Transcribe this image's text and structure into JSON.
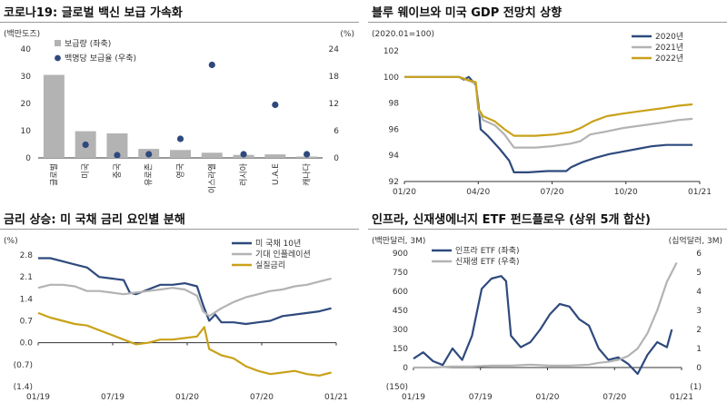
{
  "chart_data": [
    {
      "type": "bar",
      "title": "코로나19: 글로벌 백신 보급 가속화",
      "ylabel_left": "(백만도즈)",
      "ylabel_right": "(%)",
      "ylim": [
        0,
        40
      ],
      "ylim_right": [
        0,
        24
      ],
      "yticks": [
        "0",
        "10",
        "20",
        "30",
        "40"
      ],
      "yticks_right": [
        "0",
        "6",
        "12",
        "18",
        "24"
      ],
      "categories": [
        "글로벌",
        "미국",
        "중국",
        "유로존",
        "영국",
        "이스라엘",
        "러시아",
        "U.A.E",
        "캐나다"
      ],
      "series": [
        {
          "name": "보급량 (좌축)",
          "values": [
            30.5,
            9.8,
            9.0,
            3.3,
            2.9,
            1.9,
            1.1,
            1.3,
            0.5
          ],
          "axis": "left"
        },
        {
          "name": "백명당 보급율 (우축)",
          "values": [
            null,
            2.9,
            0.6,
            0.8,
            4.2,
            20.5,
            0.8,
            11.7,
            0.8
          ],
          "axis": "right"
        }
      ],
      "colors": {
        "bar": "#b3b3b3",
        "dot": "#2e4a7d"
      }
    },
    {
      "type": "line",
      "title": "블루 웨이브와 미국 GDP 전망치 상향",
      "ylabel": "(2020.01=100)",
      "ylim": [
        92,
        102
      ],
      "yticks": [
        "92",
        "94",
        "96",
        "98",
        "100",
        "102"
      ],
      "xticks": [
        "01/20",
        "04/20",
        "07/20",
        "10/20",
        "01/21"
      ],
      "series": [
        {
          "name": "2020년",
          "color": "#2e4a7d",
          "points": [
            [
              0,
              100
            ],
            [
              2.3,
              100
            ],
            [
              2.5,
              99.8
            ],
            [
              2.7,
              100
            ],
            [
              2.9,
              99.6
            ],
            [
              3,
              99.4
            ],
            [
              3.1,
              98
            ],
            [
              3.2,
              96
            ],
            [
              3.5,
              95.5
            ],
            [
              4,
              94.5
            ],
            [
              4.4,
              93.6
            ],
            [
              4.6,
              92.7
            ],
            [
              5.2,
              92.7
            ],
            [
              6,
              92.8
            ],
            [
              6.8,
              92.8
            ],
            [
              7,
              93.1
            ],
            [
              7.5,
              93.5
            ],
            [
              8,
              93.8
            ],
            [
              8.6,
              94.1
            ],
            [
              9.2,
              94.3
            ],
            [
              9.8,
              94.5
            ],
            [
              10.4,
              94.7
            ],
            [
              11,
              94.8
            ],
            [
              11.5,
              94.8
            ],
            [
              12.1,
              94.8
            ]
          ]
        },
        {
          "name": "2021년",
          "color": "#b3b3b3",
          "points": [
            [
              0,
              100
            ],
            [
              2.3,
              100
            ],
            [
              2.6,
              99.8
            ],
            [
              3,
              99.5
            ],
            [
              3.1,
              97.5
            ],
            [
              3.3,
              96.7
            ],
            [
              3.8,
              96.3
            ],
            [
              4.2,
              95.6
            ],
            [
              4.6,
              94.6
            ],
            [
              5.5,
              94.6
            ],
            [
              6.2,
              94.7
            ],
            [
              7,
              94.9
            ],
            [
              7.4,
              95.1
            ],
            [
              7.8,
              95.6
            ],
            [
              8.4,
              95.8
            ],
            [
              9.2,
              96.1
            ],
            [
              10,
              96.3
            ],
            [
              10.8,
              96.5
            ],
            [
              11.5,
              96.7
            ],
            [
              12.1,
              96.8
            ]
          ]
        },
        {
          "name": "2022년",
          "color": "#c9a21a",
          "points": [
            [
              0,
              100
            ],
            [
              2.3,
              100
            ],
            [
              2.6,
              99.8
            ],
            [
              3,
              99.6
            ],
            [
              3.1,
              97.6
            ],
            [
              3.3,
              97
            ],
            [
              3.8,
              96.6
            ],
            [
              4.2,
              96
            ],
            [
              4.6,
              95.5
            ],
            [
              5.5,
              95.5
            ],
            [
              6.3,
              95.6
            ],
            [
              7,
              95.8
            ],
            [
              7.4,
              96.1
            ],
            [
              7.9,
              96.6
            ],
            [
              8.5,
              97
            ],
            [
              9.2,
              97.2
            ],
            [
              10,
              97.4
            ],
            [
              10.8,
              97.6
            ],
            [
              11.5,
              97.8
            ],
            [
              12.1,
              97.9
            ]
          ]
        }
      ]
    },
    {
      "type": "line",
      "title": "금리 상승: 미 국채 금리 요인별 분해",
      "ylabel": "(%)",
      "ylim": [
        -1.4,
        2.8
      ],
      "yticks": [
        "(1.4)",
        "(0.7)",
        "0.0",
        "0.7",
        "1.4",
        "2.1",
        "2.8"
      ],
      "xticks": [
        "01/19",
        "07/19",
        "01/20",
        "07/20",
        "01/21"
      ],
      "series": [
        {
          "name": "미 국채 10년",
          "color": "#2e4a7d",
          "points": [
            [
              0,
              2.7
            ],
            [
              1,
              2.7
            ],
            [
              2,
              2.6
            ],
            [
              3,
              2.5
            ],
            [
              4,
              2.4
            ],
            [
              5,
              2.1
            ],
            [
              6,
              2.05
            ],
            [
              7,
              2.0
            ],
            [
              7.5,
              1.6
            ],
            [
              8,
              1.55
            ],
            [
              9,
              1.7
            ],
            [
              10,
              1.85
            ],
            [
              11,
              1.85
            ],
            [
              12,
              1.9
            ],
            [
              13,
              1.8
            ],
            [
              13.5,
              1.2
            ],
            [
              14,
              0.7
            ],
            [
              14.5,
              0.9
            ],
            [
              15,
              0.65
            ],
            [
              16,
              0.65
            ],
            [
              17,
              0.6
            ],
            [
              18,
              0.65
            ],
            [
              19,
              0.7
            ],
            [
              20,
              0.85
            ],
            [
              21,
              0.9
            ],
            [
              22,
              0.95
            ],
            [
              23,
              1.0
            ],
            [
              24,
              1.1
            ]
          ]
        },
        {
          "name": "기대 인플레이션",
          "color": "#b3b3b3",
          "points": [
            [
              0,
              1.75
            ],
            [
              1,
              1.85
            ],
            [
              2,
              1.85
            ],
            [
              3,
              1.8
            ],
            [
              4,
              1.65
            ],
            [
              5,
              1.65
            ],
            [
              6,
              1.6
            ],
            [
              7,
              1.55
            ],
            [
              8,
              1.6
            ],
            [
              9,
              1.65
            ],
            [
              10,
              1.7
            ],
            [
              11,
              1.75
            ],
            [
              12,
              1.7
            ],
            [
              13,
              1.5
            ],
            [
              13.5,
              1.0
            ],
            [
              14,
              0.85
            ],
            [
              15,
              1.1
            ],
            [
              16,
              1.3
            ],
            [
              17,
              1.45
            ],
            [
              18,
              1.55
            ],
            [
              19,
              1.65
            ],
            [
              20,
              1.7
            ],
            [
              21,
              1.8
            ],
            [
              22,
              1.85
            ],
            [
              23,
              1.95
            ],
            [
              24,
              2.05
            ]
          ]
        },
        {
          "name": "실질금리",
          "color": "#c9a21a",
          "points": [
            [
              0,
              0.95
            ],
            [
              1,
              0.8
            ],
            [
              2,
              0.7
            ],
            [
              3,
              0.6
            ],
            [
              4,
              0.55
            ],
            [
              5,
              0.4
            ],
            [
              6,
              0.25
            ],
            [
              7,
              0.1
            ],
            [
              8,
              -0.05
            ],
            [
              9,
              0.0
            ],
            [
              10,
              0.1
            ],
            [
              11,
              0.1
            ],
            [
              12,
              0.15
            ],
            [
              13,
              0.2
            ],
            [
              13.6,
              0.5
            ],
            [
              14,
              -0.2
            ],
            [
              15,
              -0.4
            ],
            [
              16,
              -0.5
            ],
            [
              17,
              -0.75
            ],
            [
              18,
              -0.9
            ],
            [
              19,
              -1.0
            ],
            [
              20,
              -0.95
            ],
            [
              21,
              -0.9
            ],
            [
              22,
              -1.0
            ],
            [
              23,
              -1.05
            ],
            [
              24,
              -0.95
            ]
          ]
        }
      ]
    },
    {
      "type": "line",
      "title": "인프라, 신재생에너지 ETF 펀드플로우 (상위 5개 합산)",
      "ylabel_left": "(백만달러, 3M)",
      "ylabel_right": "(십억달러, 3M)",
      "ylim": [
        -150,
        900
      ],
      "ylim_right": [
        -1,
        6
      ],
      "yticks": [
        "(150)",
        "0",
        "150",
        "300",
        "450",
        "600",
        "750",
        "900"
      ],
      "yticks_right": [
        "(1)",
        "0",
        "1",
        "2",
        "3",
        "4",
        "5",
        "6"
      ],
      "xticks": [
        "01/19",
        "07/19",
        "01/20",
        "07/20",
        "01/21"
      ],
      "series": [
        {
          "name": "인프라 ETF (좌축)",
          "color": "#2e4a7d",
          "axis": "left",
          "points": [
            [
              0,
              70
            ],
            [
              1,
              120
            ],
            [
              2,
              50
            ],
            [
              3,
              20
            ],
            [
              4,
              150
            ],
            [
              5,
              60
            ],
            [
              6,
              250
            ],
            [
              7,
              620
            ],
            [
              8,
              700
            ],
            [
              9,
              720
            ],
            [
              9.5,
              680
            ],
            [
              10,
              250
            ],
            [
              11,
              160
            ],
            [
              12,
              200
            ],
            [
              13,
              300
            ],
            [
              14,
              420
            ],
            [
              15,
              500
            ],
            [
              16,
              480
            ],
            [
              17,
              380
            ],
            [
              18,
              330
            ],
            [
              19,
              150
            ],
            [
              20,
              60
            ],
            [
              21,
              80
            ],
            [
              22,
              30
            ],
            [
              23,
              -50
            ],
            [
              24,
              100
            ],
            [
              25,
              200
            ],
            [
              26,
              160
            ],
            [
              26.5,
              300
            ]
          ]
        },
        {
          "name": "신재생 ETF (우축)",
          "color": "#b3b3b3",
          "axis": "right",
          "points": [
            [
              0,
              0.0
            ],
            [
              2,
              0.0
            ],
            [
              4,
              0.05
            ],
            [
              6,
              0.05
            ],
            [
              8,
              0.1
            ],
            [
              10,
              0.1
            ],
            [
              12,
              0.15
            ],
            [
              14,
              0.1
            ],
            [
              16,
              0.1
            ],
            [
              18,
              0.15
            ],
            [
              19,
              0.25
            ],
            [
              20,
              0.3
            ],
            [
              21,
              0.4
            ],
            [
              22,
              0.6
            ],
            [
              23,
              1.0
            ],
            [
              24,
              1.8
            ],
            [
              25,
              3.0
            ],
            [
              26,
              4.5
            ],
            [
              27,
              5.5
            ]
          ]
        }
      ]
    }
  ]
}
